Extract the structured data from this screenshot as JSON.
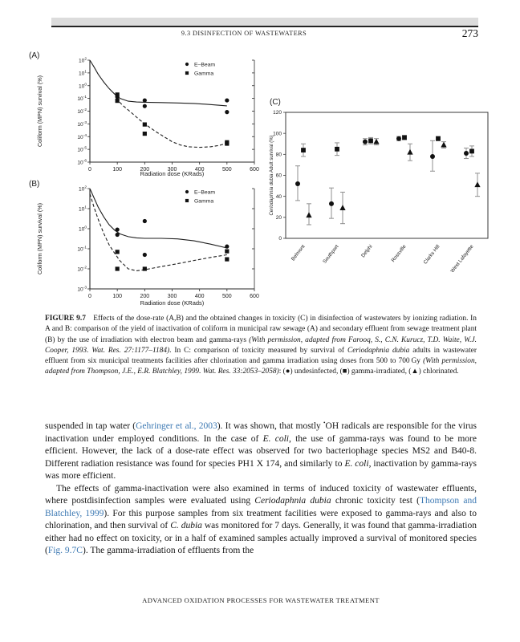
{
  "page": {
    "running_head": "9.3 DISINFECTION OF WASTEWATERS",
    "page_number": "273",
    "footer": "ADVANCED OXIDATION PROCESSES FOR WASTEWATER TREATMENT"
  },
  "colors": {
    "link": "#3d79b3",
    "header_bar": "#dcdcdc",
    "marker": "#111111",
    "error_bar": "#8f8f8f"
  },
  "figure": {
    "caption_segments": [
      {
        "t": "FIGURE 9.7  ",
        "s": "b"
      },
      {
        "t": "Effects of the dose-rate (A,B) and the obtained changes in toxicity (C) in disinfection of wastewaters by ionizing radiation. In A and B: comparison of the yield of inactivation of coliform in municipal raw sewage (A) and secondary effluent from sewage treatment plant (B) by the use of irradiation with electron beam and gamma-rays "
      },
      {
        "t": "(With permission, adapted from Farooq, S., C.N. Kurucz, T.D. Waite, W.J. Cooper, 1993. Wat. Res. 27:1177–1184)",
        "s": "i"
      },
      {
        "t": ". In C: comparison of toxicity measured by survival of "
      },
      {
        "t": "Ceriodaphnia dubia",
        "s": "i"
      },
      {
        "t": " adults in wastewater effluent from six municipal treatments facilities after chlorination and gamma irradiation using doses from 500 to 700 Gy "
      },
      {
        "t": "(With permission, adapted from Thompson, J.E., E.R. Blatchley, 1999. Wat. Res. 33:2053–2058)",
        "s": "i"
      },
      {
        "t": ": (●) undesinfected, (■) gamma-irradiated, (▲) chlorinated."
      }
    ]
  },
  "body": {
    "para1_segments": [
      {
        "t": "suspended in tap water ("
      },
      {
        "t": "Gehringer et al., 2003",
        "s": "link"
      },
      {
        "t": "). It was shown, that mostly "
      },
      {
        "t": "•",
        "s": "sup"
      },
      {
        "t": "OH radicals are responsible for the virus inactivation under employed conditions. In the case of "
      },
      {
        "t": "E. coli",
        "s": "i"
      },
      {
        "t": ", the use of gamma-rays was found to be more efficient. However, the lack of a dose-rate effect was observed for two bacteriophage species MS2 and B40-8. Different radiation resistance was found for species PH1 X 174, and similarly to "
      },
      {
        "t": "E. coli",
        "s": "i"
      },
      {
        "t": ", inactivation by gamma-rays was more efficient."
      }
    ],
    "para2_segments": [
      {
        "t": "The effects of gamma-inactivation were also examined in terms of induced toxicity of wastewater effluents, where postdisinfection samples were evaluated using "
      },
      {
        "t": "Ceriodaphnia dubia",
        "s": "i"
      },
      {
        "t": " chronic toxicity test ("
      },
      {
        "t": "Thompson and Blatchley, 1999",
        "s": "link"
      },
      {
        "t": "). For this purpose samples from six treatment facilities were exposed to gamma-rays and also to chlorination, and then survival of "
      },
      {
        "t": "C. dubia",
        "s": "i"
      },
      {
        "t": " was monitored for 7 days. Generally, it was found that gamma-irradiation either had no effect on toxicity, or in a half of examined samples actually improved a survival of monitored species ("
      },
      {
        "t": "Fig. 9.7C",
        "s": "link"
      },
      {
        "t": "). The gamma-irradiation of effluents from the"
      }
    ]
  },
  "chart_data": [
    {
      "id": "A",
      "type": "scatter",
      "panel_label": "(A)",
      "xlabel": "Radiation dose (KRads)",
      "ylabel": "Coliform (MPN) survival (%)",
      "xlim": [
        0,
        600
      ],
      "x_ticks": [
        0,
        100,
        200,
        300,
        400,
        500,
        600
      ],
      "y_scale": "log",
      "y_exponents": [
        2,
        -6
      ],
      "legend": [
        {
          "label": "E–Beam",
          "marker": "circle"
        },
        {
          "label": "Gamma",
          "marker": "square"
        }
      ],
      "series": [
        {
          "name": "E-Beam",
          "marker": "circle",
          "points": [
            [
              100,
              0.13
            ],
            [
              200,
              0.07
            ],
            [
              200,
              0.025
            ],
            [
              500,
              0.07
            ],
            [
              500,
              0.0085
            ]
          ]
        },
        {
          "name": "Gamma",
          "marker": "square",
          "points": [
            [
              100,
              0.2
            ],
            [
              100,
              0.065
            ],
            [
              200,
              0.0009
            ],
            [
              200,
              0.00017
            ],
            [
              500,
              2.8e-05
            ],
            [
              500,
              3.6e-05
            ]
          ]
        }
      ],
      "fit_lines": [
        {
          "series": "E-Beam",
          "style": "solid",
          "points": [
            [
              0,
              100
            ],
            [
              15,
              30
            ],
            [
              30,
              8
            ],
            [
              50,
              2
            ],
            [
              70,
              0.6
            ],
            [
              90,
              0.22
            ],
            [
              110,
              0.1
            ],
            [
              140,
              0.06
            ],
            [
              170,
              0.052
            ],
            [
              200,
              0.05
            ],
            [
              260,
              0.047
            ],
            [
              320,
              0.044
            ],
            [
              380,
              0.04
            ],
            [
              440,
              0.033
            ],
            [
              500,
              0.026
            ]
          ]
        },
        {
          "series": "Gamma",
          "style": "dashed",
          "points": [
            [
              95,
              0.1
            ],
            [
              120,
              0.028
            ],
            [
              150,
              0.008
            ],
            [
              180,
              0.0022
            ],
            [
              210,
              0.0007
            ],
            [
              240,
              0.00025
            ],
            [
              270,
              0.0001
            ],
            [
              300,
              4e-05
            ],
            [
              330,
              2.2e-05
            ],
            [
              360,
              1.6e-05
            ],
            [
              400,
              1.45e-05
            ],
            [
              440,
              1.6e-05
            ],
            [
              470,
              2e-05
            ],
            [
              500,
              3e-05
            ]
          ]
        }
      ]
    },
    {
      "id": "B",
      "type": "scatter",
      "panel_label": "(B)",
      "xlabel": "Radiation dose (KRads)",
      "ylabel": "Coliform (MPN) survival (%)",
      "xlim": [
        0,
        600
      ],
      "x_ticks": [
        0,
        100,
        200,
        300,
        400,
        500,
        600
      ],
      "y_scale": "log",
      "y_exponents": [
        2,
        -3
      ],
      "legend": [
        {
          "label": "E–Beam",
          "marker": "circle"
        },
        {
          "label": "Gamma",
          "marker": "square"
        }
      ],
      "series": [
        {
          "name": "E-Beam",
          "marker": "circle",
          "points": [
            [
              100,
              0.9
            ],
            [
              100,
              0.5
            ],
            [
              200,
              2.4
            ],
            [
              200,
              0.05
            ],
            [
              500,
              0.13
            ]
          ]
        },
        {
          "name": "Gamma",
          "marker": "square",
          "points": [
            [
              100,
              0.07
            ],
            [
              100,
              0.01
            ],
            [
              200,
              0.01
            ],
            [
              500,
              0.075
            ],
            [
              500,
              0.03
            ]
          ]
        }
      ],
      "fit_lines": [
        {
          "series": "E-Beam",
          "style": "solid",
          "points": [
            [
              0,
              100
            ],
            [
              15,
              35
            ],
            [
              30,
              12
            ],
            [
              50,
              4
            ],
            [
              70,
              1.6
            ],
            [
              90,
              0.85
            ],
            [
              110,
              0.55
            ],
            [
              140,
              0.4
            ],
            [
              170,
              0.35
            ],
            [
              200,
              0.33
            ],
            [
              260,
              0.33
            ],
            [
              320,
              0.31
            ],
            [
              380,
              0.25
            ],
            [
              440,
              0.17
            ],
            [
              500,
              0.11
            ]
          ]
        },
        {
          "series": "Gamma",
          "style": "dashed",
          "points": [
            [
              0,
              55
            ],
            [
              15,
              12
            ],
            [
              30,
              3
            ],
            [
              50,
              0.6
            ],
            [
              70,
              0.16
            ],
            [
              90,
              0.06
            ],
            [
              110,
              0.025
            ],
            [
              140,
              0.01
            ],
            [
              170,
              0.008
            ],
            [
              200,
              0.009
            ],
            [
              260,
              0.013
            ],
            [
              320,
              0.018
            ],
            [
              380,
              0.026
            ],
            [
              440,
              0.037
            ],
            [
              500,
              0.05
            ]
          ]
        }
      ]
    },
    {
      "id": "C",
      "type": "scatter-errorbar",
      "panel_label": "(C)",
      "ylabel_italic": "Ceriodaphnia dubia",
      "ylabel_rest": " Adult survival (%)",
      "ylim": [
        0,
        120
      ],
      "y_ticks": [
        0,
        20,
        40,
        60,
        80,
        100,
        120
      ],
      "categories": [
        "Belmont",
        "Southport",
        "Delphi",
        "Rossville",
        "Clarks Hill",
        "West Lafayette"
      ],
      "series": [
        {
          "name": "undesinfected",
          "marker": "circle",
          "values": [
            52,
            33,
            92,
            95,
            78,
            81
          ],
          "lo": [
            36,
            19,
            89,
            93,
            64,
            76
          ],
          "hi": [
            69,
            48,
            95,
            97,
            93,
            86
          ]
        },
        {
          "name": "gamma-irradiated",
          "marker": "square",
          "values": [
            84,
            85,
            93,
            96,
            95,
            83
          ],
          "lo": [
            78,
            79,
            90,
            94,
            93,
            78
          ],
          "hi": [
            90,
            91,
            96,
            98,
            97,
            88
          ]
        },
        {
          "name": "chlorinated",
          "marker": "triangle",
          "values": [
            22,
            29,
            92,
            82,
            89,
            51
          ],
          "lo": [
            13,
            14,
            89,
            74,
            86,
            40
          ],
          "hi": [
            33,
            44,
            95,
            90,
            92,
            62
          ]
        }
      ]
    }
  ]
}
